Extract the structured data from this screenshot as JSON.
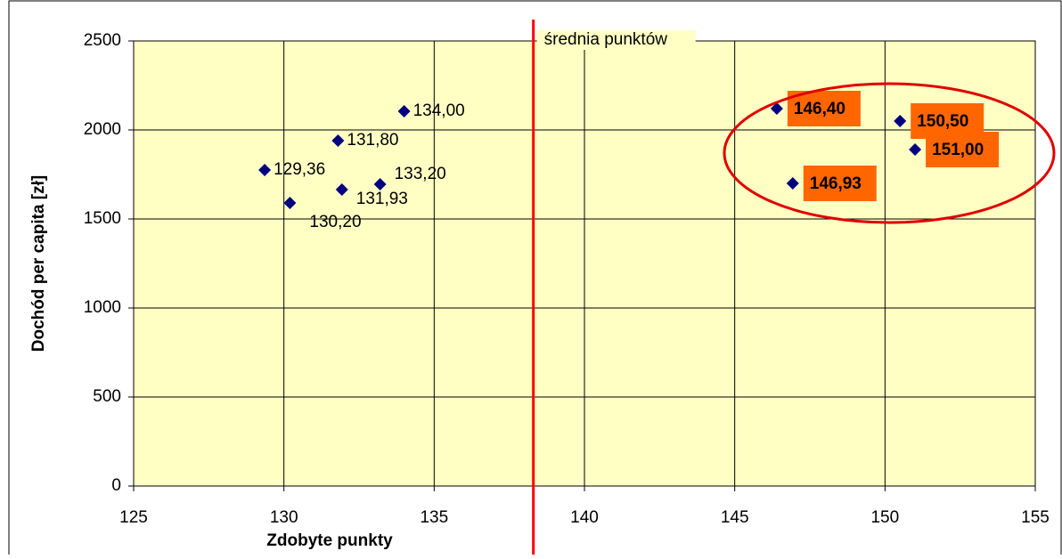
{
  "chart_data": {
    "type": "scatter",
    "x_label": "Zdobyte punkty",
    "y_label": "Dochód per capita [zł]",
    "xlim": [
      125,
      155
    ],
    "xticks": [
      125,
      130,
      135,
      140,
      145,
      150,
      155
    ],
    "ylim": [
      0,
      2500
    ],
    "yticks": [
      0,
      500,
      1000,
      1500,
      2000,
      2500
    ],
    "grid": true,
    "background": "#ffffc4",
    "series": [
      {
        "color": "#000080",
        "x": [
          129.36,
          130.2,
          131.8,
          131.93,
          133.2,
          134.0
        ],
        "values": [
          1775,
          1590,
          1940,
          1665,
          1695,
          2105
        ],
        "value_labels": [
          "129,36",
          "130,20",
          "131,80",
          "131,93",
          "133,20",
          "134,00"
        ]
      },
      {
        "color": "#000080",
        "highlight_color": "#ff6600",
        "x": [
          146.4,
          146.93,
          150.5,
          151.0
        ],
        "values": [
          2120,
          1700,
          2050,
          1890
        ],
        "value_labels": [
          "146,40",
          "146,93",
          "150,50",
          "151,00"
        ]
      }
    ],
    "mean_line": {
      "x": 138.3,
      "label": "średnia punktów",
      "color": "#ff0000"
    }
  }
}
